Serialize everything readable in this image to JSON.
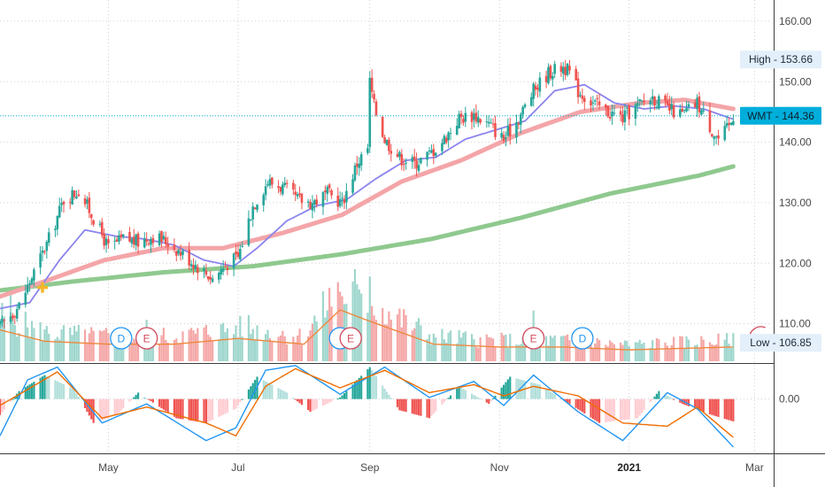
{
  "chart_data": {
    "type": "candlestick",
    "symbol": "WMT",
    "price_axis": {
      "ylim": [
        103.5,
        163.5
      ],
      "ticks": [
        {
          "value": 160,
          "label": "160.00"
        },
        {
          "value": 150,
          "label": "150.00"
        },
        {
          "value": 140,
          "label": "140.00"
        },
        {
          "value": 130,
          "label": "130.00"
        },
        {
          "value": 120,
          "label": "120.00"
        },
        {
          "value": 110,
          "label": "110.00"
        }
      ],
      "grid": true
    },
    "oscillator_axis": {
      "ylim": [
        -3.4,
        2.2
      ],
      "ticks": [
        {
          "value": 0,
          "label": "0.00"
        }
      ],
      "grid": true
    },
    "x_axis": {
      "start": "2020-03-11",
      "end": "2021-03-10",
      "ticks": [
        {
          "date": "2020-05-01",
          "label": "May",
          "bold": false
        },
        {
          "date": "2020-07-01",
          "label": "Jul",
          "bold": false
        },
        {
          "date": "2020-09-01",
          "label": "Sep",
          "bold": false
        },
        {
          "date": "2020-11-01",
          "label": "Nov",
          "bold": false
        },
        {
          "date": "2021-01-01",
          "label": "2021",
          "bold": true
        },
        {
          "date": "2021-03-01",
          "label": "Mar",
          "bold": false
        }
      ]
    },
    "price_keypoints": [
      [
        "2020-03-11",
        109.5
      ],
      [
        "2020-03-20",
        113.0
      ],
      [
        "2020-03-27",
        118.5
      ],
      [
        "2020-04-03",
        124.0
      ],
      [
        "2020-04-10",
        130.5
      ],
      [
        "2020-04-17",
        132.0
      ],
      [
        "2020-04-24",
        127.5
      ],
      [
        "2020-05-01",
        122.5
      ],
      [
        "2020-05-08",
        124.0
      ],
      [
        "2020-05-15",
        123.5
      ],
      [
        "2020-05-22",
        124.5
      ],
      [
        "2020-05-29",
        123.5
      ],
      [
        "2020-06-05",
        121.5
      ],
      [
        "2020-06-12",
        119.5
      ],
      [
        "2020-06-19",
        117.5
      ],
      [
        "2020-06-26",
        120.0
      ],
      [
        "2020-07-01",
        121.0
      ],
      [
        "2020-07-08",
        129.5
      ],
      [
        "2020-07-15",
        133.5
      ],
      [
        "2020-07-22",
        132.5
      ],
      [
        "2020-07-29",
        130.5
      ],
      [
        "2020-08-05",
        130.0
      ],
      [
        "2020-08-12",
        131.5
      ],
      [
        "2020-08-19",
        130.0
      ],
      [
        "2020-08-26",
        136.5
      ],
      [
        "2020-08-31",
        139.0
      ],
      [
        "2020-09-01",
        150.0
      ],
      [
        "2020-09-03",
        146.0
      ],
      [
        "2020-09-08",
        140.5
      ],
      [
        "2020-09-15",
        137.5
      ],
      [
        "2020-09-22",
        136.5
      ],
      [
        "2020-09-29",
        138.0
      ],
      [
        "2020-10-06",
        140.5
      ],
      [
        "2020-10-13",
        144.0
      ],
      [
        "2020-10-20",
        144.5
      ],
      [
        "2020-10-27",
        143.0
      ],
      [
        "2020-11-03",
        140.5
      ],
      [
        "2020-11-10",
        144.0
      ],
      [
        "2020-11-17",
        148.5
      ],
      [
        "2020-11-24",
        151.5
      ],
      [
        "2020-12-01",
        152.5
      ],
      [
        "2020-12-04",
        151.5
      ],
      [
        "2020-12-08",
        148.5
      ],
      [
        "2020-12-15",
        146.5
      ],
      [
        "2020-12-22",
        145.0
      ],
      [
        "2020-12-29",
        144.0
      ],
      [
        "2021-01-05",
        146.0
      ],
      [
        "2021-01-12",
        147.5
      ],
      [
        "2021-01-19",
        145.5
      ],
      [
        "2021-01-26",
        144.5
      ],
      [
        "2021-02-02",
        146.5
      ],
      [
        "2021-02-09",
        142.0
      ],
      [
        "2021-02-12",
        140.5
      ],
      [
        "2021-02-17",
        142.5
      ],
      [
        "2021-02-19",
        144.36
      ]
    ],
    "ma_fast": [
      [
        "2020-03-11",
        112.5
      ],
      [
        "2020-03-25",
        113.5
      ],
      [
        "2020-04-08",
        120.5
      ],
      [
        "2020-04-20",
        125.5
      ],
      [
        "2020-05-04",
        124.5
      ],
      [
        "2020-05-18",
        124.0
      ],
      [
        "2020-06-01",
        123.0
      ],
      [
        "2020-06-15",
        120.5
      ],
      [
        "2020-06-29",
        119.5
      ],
      [
        "2020-07-10",
        122.5
      ],
      [
        "2020-07-24",
        127.0
      ],
      [
        "2020-08-07",
        129.5
      ],
      [
        "2020-08-21",
        130.5
      ],
      [
        "2020-09-04",
        134.0
      ],
      [
        "2020-09-18",
        137.0
      ],
      [
        "2020-10-02",
        137.5
      ],
      [
        "2020-10-16",
        140.5
      ],
      [
        "2020-10-30",
        142.0
      ],
      [
        "2020-11-13",
        143.5
      ],
      [
        "2020-11-27",
        148.5
      ],
      [
        "2020-12-11",
        149.5
      ],
      [
        "2020-12-25",
        146.5
      ],
      [
        "2021-01-08",
        145.5
      ],
      [
        "2021-01-22",
        146.0
      ],
      [
        "2021-02-05",
        145.5
      ],
      [
        "2021-02-19",
        143.8
      ]
    ],
    "ma_mid": [
      [
        "2020-03-11",
        114.5
      ],
      [
        "2020-04-01",
        117.0
      ],
      [
        "2020-04-29",
        120.5
      ],
      [
        "2020-05-27",
        122.5
      ],
      [
        "2020-06-24",
        122.5
      ],
      [
        "2020-07-22",
        125.0
      ],
      [
        "2020-08-19",
        128.0
      ],
      [
        "2020-09-16",
        133.5
      ],
      [
        "2020-10-14",
        137.0
      ],
      [
        "2020-11-11",
        141.5
      ],
      [
        "2020-12-09",
        145.0
      ],
      [
        "2021-01-06",
        146.5
      ],
      [
        "2021-01-27",
        147.0
      ],
      [
        "2021-02-19",
        145.5
      ]
    ],
    "ma_slow": [
      [
        "2020-03-11",
        115.5
      ],
      [
        "2020-04-15",
        117.0
      ],
      [
        "2020-05-27",
        118.5
      ],
      [
        "2020-07-08",
        119.5
      ],
      [
        "2020-08-19",
        121.5
      ],
      [
        "2020-09-30",
        124.0
      ],
      [
        "2020-11-11",
        127.5
      ],
      [
        "2020-12-23",
        131.5
      ],
      [
        "2021-02-03",
        134.5
      ],
      [
        "2021-02-19",
        136.0
      ]
    ],
    "oscillator_lines": {
      "signal": [
        [
          "2020-03-11",
          -0.4
        ],
        [
          "2020-03-24",
          0.6
        ],
        [
          "2020-04-07",
          1.7
        ],
        [
          "2020-04-28",
          -1.2
        ],
        [
          "2020-05-19",
          -0.5
        ],
        [
          "2020-06-16",
          -1.5
        ],
        [
          "2020-06-30",
          -2.3
        ],
        [
          "2020-07-14",
          0.8
        ],
        [
          "2020-07-28",
          1.9
        ],
        [
          "2020-08-18",
          0.7
        ],
        [
          "2020-09-08",
          1.8
        ],
        [
          "2020-09-29",
          0.4
        ],
        [
          "2020-10-20",
          0.9
        ],
        [
          "2020-11-03",
          0.2
        ],
        [
          "2020-11-17",
          0.8
        ],
        [
          "2020-12-08",
          0.2
        ],
        [
          "2020-12-29",
          -1.5
        ],
        [
          "2021-01-19",
          -1.7
        ],
        [
          "2021-02-02",
          -0.5
        ],
        [
          "2021-02-19",
          -2.4
        ]
      ],
      "fast": [
        [
          "2020-03-11",
          -2.3
        ],
        [
          "2020-03-24",
          1.2
        ],
        [
          "2020-04-07",
          2.0
        ],
        [
          "2020-04-28",
          -1.5
        ],
        [
          "2020-05-19",
          -0.3
        ],
        [
          "2020-06-16",
          -2.6
        ],
        [
          "2020-06-30",
          -1.8
        ],
        [
          "2020-07-14",
          1.8
        ],
        [
          "2020-07-28",
          2.1
        ],
        [
          "2020-08-18",
          0.3
        ],
        [
          "2020-09-08",
          2.0
        ],
        [
          "2020-09-29",
          0.1
        ],
        [
          "2020-10-20",
          1.1
        ],
        [
          "2020-11-03",
          -0.4
        ],
        [
          "2020-11-17",
          1.5
        ],
        [
          "2020-12-08",
          -0.8
        ],
        [
          "2020-12-29",
          -2.6
        ],
        [
          "2021-01-19",
          0.4
        ],
        [
          "2021-02-02",
          -0.6
        ],
        [
          "2021-02-19",
          -3.0
        ]
      ]
    },
    "histogram_keypoints": [
      [
        "2020-03-11",
        -1.0
      ],
      [
        "2020-03-20",
        0.5
      ],
      [
        "2020-04-01",
        1.5
      ],
      [
        "2020-04-15",
        0.6
      ],
      [
        "2020-04-24",
        -1.5
      ],
      [
        "2020-05-05",
        -1.0
      ],
      [
        "2020-05-15",
        0.4
      ],
      [
        "2020-06-02",
        -1.2
      ],
      [
        "2020-06-16",
        -1.5
      ],
      [
        "2020-06-30",
        -0.6
      ],
      [
        "2020-07-10",
        1.4
      ],
      [
        "2020-07-24",
        0.4
      ],
      [
        "2020-08-04",
        -0.8
      ],
      [
        "2020-08-18",
        0.1
      ],
      [
        "2020-09-01",
        2.0
      ],
      [
        "2020-09-15",
        -0.7
      ],
      [
        "2020-09-29",
        -1.2
      ],
      [
        "2020-10-13",
        0.8
      ],
      [
        "2020-10-27",
        -0.3
      ],
      [
        "2020-11-06",
        1.4
      ],
      [
        "2020-11-20",
        0.9
      ],
      [
        "2020-12-04",
        -0.3
      ],
      [
        "2020-12-18",
        -1.5
      ],
      [
        "2021-01-05",
        -1.2
      ],
      [
        "2021-01-15",
        0.5
      ],
      [
        "2021-01-26",
        -0.3
      ],
      [
        "2021-02-09",
        -1.0
      ],
      [
        "2021-02-19",
        -1.4
      ]
    ],
    "volume_keypoints": [
      [
        "2020-03-11",
        0.55
      ],
      [
        "2020-04-01",
        0.35
      ],
      [
        "2020-05-01",
        0.3
      ],
      [
        "2020-06-01",
        0.3
      ],
      [
        "2020-07-01",
        0.4
      ],
      [
        "2020-08-01",
        0.3
      ],
      [
        "2020-08-18",
        0.9
      ],
      [
        "2020-09-01",
        0.7
      ],
      [
        "2020-10-01",
        0.3
      ],
      [
        "2020-11-01",
        0.25
      ],
      [
        "2020-12-01",
        0.25
      ],
      [
        "2021-01-01",
        0.2
      ],
      [
        "2021-02-19",
        0.25
      ]
    ],
    "volume_spikes": [
      [
        "2020-08-25",
        1.0
      ],
      [
        "2020-08-27",
        0.78
      ],
      [
        "2020-09-01",
        0.92
      ],
      [
        "2020-09-02",
        0.6
      ],
      [
        "2020-03-16",
        0.75
      ],
      [
        "2020-07-06",
        0.5
      ],
      [
        "2020-11-17",
        0.55
      ],
      [
        "2020-08-20",
        0.62
      ],
      [
        "2020-05-19",
        0.45
      ]
    ],
    "events": [
      {
        "date": "2020-05-07",
        "label": "D",
        "kind": "dividend"
      },
      {
        "date": "2020-05-19",
        "label": "E",
        "kind": "earnings"
      },
      {
        "date": "2020-08-18",
        "label": "",
        "kind": "dividend"
      },
      {
        "date": "2020-08-23",
        "label": "E",
        "kind": "earnings"
      },
      {
        "date": "2020-11-17",
        "label": "E",
        "kind": "earnings"
      },
      {
        "date": "2020-12-10",
        "label": "D",
        "kind": "dividend"
      }
    ],
    "next_event_marker": {
      "date": "2021-03-09",
      "kind": "earnings"
    },
    "golden_cross_marker": {
      "date": "2020-03-31",
      "value": 116.0
    },
    "price_labels": [
      {
        "label": "High",
        "value": 153.66,
        "text": "153.66",
        "kind": "high"
      },
      {
        "label": "WMT",
        "value": 144.36,
        "text": "144.36",
        "kind": "last"
      },
      {
        "label": "Low",
        "value": 106.85,
        "text": "106.85",
        "kind": "low"
      }
    ],
    "colors": {
      "up": "#26a69a",
      "down": "#ef5350",
      "ma_fast": "#8b84ee",
      "ma_mid": "#f4a5a8",
      "ma_slow": "#8fc98f",
      "vol_up": "#9ed6cd",
      "vol_down": "#f4a7a6",
      "vol_ma": "#f0883e",
      "osc_fast": "#2196f3",
      "osc_signal": "#ef6c00",
      "hist_up_strong": "#26a69a",
      "hist_up_weak": "#b2dfdb",
      "hist_down_strong": "#ef5350",
      "hist_down_weak": "#ffcdd2",
      "last_price": "#00aedb",
      "tag_bg": "#e3effa",
      "event_dividend": "#2196f3",
      "event_earnings": "#d24a5c"
    }
  }
}
